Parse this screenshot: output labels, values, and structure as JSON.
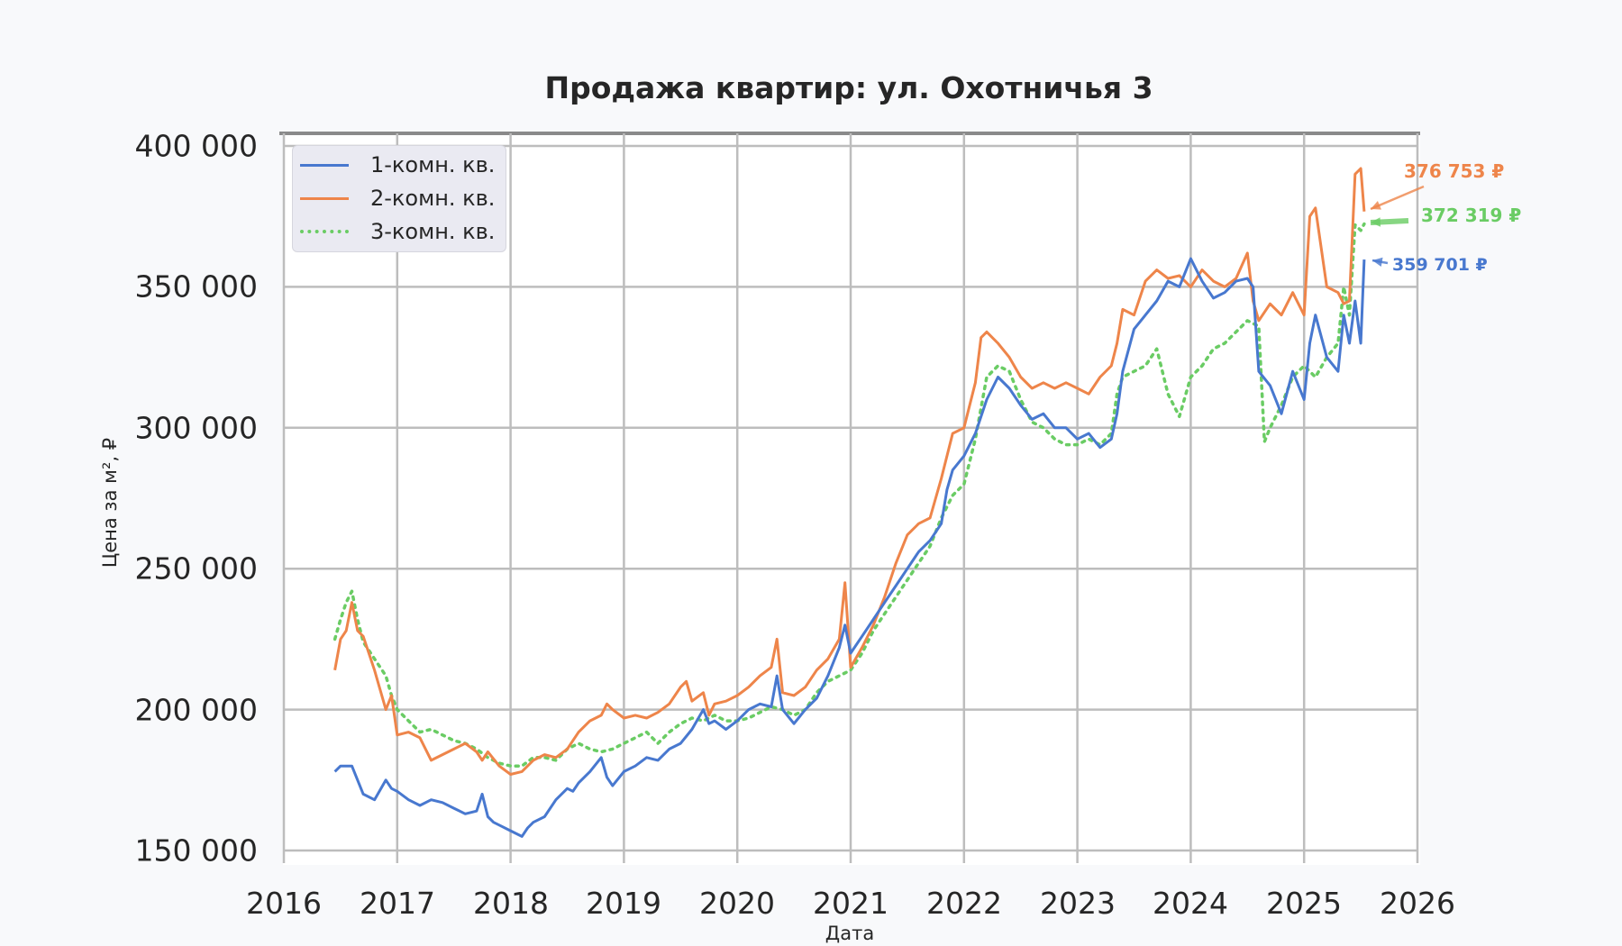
{
  "chart_data": {
    "type": "line",
    "title": "Продажа квартир: ул. Охотничья 3",
    "xlabel": "Дата",
    "ylabel": "Цена за м², ₽",
    "xlim": [
      2016,
      2026
    ],
    "ylim": [
      150000,
      400000
    ],
    "x_ticks": [
      "2016",
      "2017",
      "2018",
      "2019",
      "2020",
      "2021",
      "2022",
      "2023",
      "2024",
      "2025",
      "2026"
    ],
    "y_ticks": [
      "150 000",
      "200 000",
      "250 000",
      "300 000",
      "350 000",
      "400 000"
    ],
    "grid": true,
    "legend_position": "upper left",
    "series": [
      {
        "name": "1-комн. кв.",
        "color": "#4878cf",
        "style": "solid",
        "x": [
          2016.45,
          2016.5,
          2016.6,
          2016.7,
          2016.8,
          2016.9,
          2016.95,
          2017.0,
          2017.1,
          2017.2,
          2017.3,
          2017.4,
          2017.5,
          2017.6,
          2017.7,
          2017.75,
          2017.8,
          2017.85,
          2017.9,
          2018.0,
          2018.1,
          2018.15,
          2018.2,
          2018.3,
          2018.4,
          2018.5,
          2018.55,
          2018.6,
          2018.7,
          2018.8,
          2018.85,
          2018.9,
          2019.0,
          2019.1,
          2019.2,
          2019.3,
          2019.4,
          2019.5,
          2019.6,
          2019.7,
          2019.75,
          2019.8,
          2019.9,
          2020.0,
          2020.1,
          2020.2,
          2020.3,
          2020.35,
          2020.4,
          2020.5,
          2020.6,
          2020.7,
          2020.8,
          2020.9,
          2020.95,
          2021.0,
          2021.1,
          2021.2,
          2021.3,
          2021.4,
          2021.5,
          2021.6,
          2021.7,
          2021.8,
          2021.85,
          2021.9,
          2022.0,
          2022.1,
          2022.2,
          2022.3,
          2022.4,
          2022.5,
          2022.6,
          2022.7,
          2022.8,
          2022.9,
          2023.0,
          2023.1,
          2023.2,
          2023.3,
          2023.35,
          2023.4,
          2023.5,
          2023.6,
          2023.7,
          2023.8,
          2023.9,
          2024.0,
          2024.1,
          2024.2,
          2024.3,
          2024.4,
          2024.5,
          2024.55,
          2024.6,
          2024.7,
          2024.8,
          2024.9,
          2025.0,
          2025.05,
          2025.1,
          2025.2,
          2025.3,
          2025.35,
          2025.4,
          2025.45,
          2025.5,
          2025.53
        ],
        "values": [
          178000,
          180000,
          180000,
          170000,
          168000,
          175000,
          172000,
          171000,
          168000,
          166000,
          168000,
          167000,
          165000,
          163000,
          164000,
          170000,
          162000,
          160000,
          159000,
          157000,
          155000,
          158000,
          160000,
          162000,
          168000,
          172000,
          171000,
          174000,
          178000,
          183000,
          176000,
          173000,
          178000,
          180000,
          183000,
          182000,
          186000,
          188000,
          193000,
          200000,
          195000,
          196000,
          193000,
          196000,
          200000,
          202000,
          201000,
          212000,
          200000,
          195000,
          200000,
          204000,
          212000,
          222000,
          230000,
          220000,
          226000,
          232000,
          238000,
          244000,
          250000,
          256000,
          260000,
          266000,
          278000,
          285000,
          290000,
          298000,
          310000,
          318000,
          314000,
          308000,
          303000,
          305000,
          300000,
          300000,
          296000,
          298000,
          293000,
          296000,
          305000,
          320000,
          335000,
          340000,
          345000,
          352000,
          350000,
          360000,
          352000,
          346000,
          348000,
          352000,
          353000,
          350000,
          320000,
          315000,
          305000,
          320000,
          310000,
          330000,
          340000,
          325000,
          320000,
          340000,
          330000,
          345000,
          330000,
          359701
        ]
      },
      {
        "name": "2-комн. кв.",
        "color": "#ee854a",
        "style": "solid",
        "x": [
          2016.45,
          2016.5,
          2016.55,
          2016.6,
          2016.65,
          2016.7,
          2016.8,
          2016.9,
          2016.95,
          2017.0,
          2017.1,
          2017.2,
          2017.3,
          2017.4,
          2017.5,
          2017.6,
          2017.7,
          2017.75,
          2017.8,
          2017.9,
          2018.0,
          2018.1,
          2018.2,
          2018.3,
          2018.4,
          2018.5,
          2018.6,
          2018.7,
          2018.8,
          2018.85,
          2018.9,
          2019.0,
          2019.1,
          2019.2,
          2019.3,
          2019.4,
          2019.5,
          2019.55,
          2019.6,
          2019.7,
          2019.75,
          2019.8,
          2019.9,
          2020.0,
          2020.1,
          2020.2,
          2020.3,
          2020.35,
          2020.4,
          2020.5,
          2020.6,
          2020.7,
          2020.8,
          2020.9,
          2020.95,
          2021.0,
          2021.1,
          2021.2,
          2021.3,
          2021.4,
          2021.5,
          2021.6,
          2021.7,
          2021.8,
          2021.9,
          2022.0,
          2022.1,
          2022.15,
          2022.2,
          2022.3,
          2022.4,
          2022.5,
          2022.6,
          2022.7,
          2022.8,
          2022.9,
          2023.0,
          2023.1,
          2023.2,
          2023.3,
          2023.35,
          2023.4,
          2023.5,
          2023.6,
          2023.7,
          2023.8,
          2023.9,
          2024.0,
          2024.1,
          2024.2,
          2024.3,
          2024.4,
          2024.5,
          2024.55,
          2024.6,
          2024.7,
          2024.8,
          2024.9,
          2025.0,
          2025.05,
          2025.1,
          2025.2,
          2025.3,
          2025.35,
          2025.4,
          2025.45,
          2025.5,
          2025.53
        ],
        "values": [
          214000,
          225000,
          228000,
          238000,
          228000,
          226000,
          214000,
          200000,
          205000,
          191000,
          192000,
          190000,
          182000,
          184000,
          186000,
          188000,
          185000,
          182000,
          185000,
          180000,
          177000,
          178000,
          182000,
          184000,
          183000,
          186000,
          192000,
          196000,
          198000,
          202000,
          200000,
          197000,
          198000,
          197000,
          199000,
          202000,
          208000,
          210000,
          203000,
          206000,
          198000,
          202000,
          203000,
          205000,
          208000,
          212000,
          215000,
          225000,
          206000,
          205000,
          208000,
          214000,
          218000,
          225000,
          245000,
          215000,
          222000,
          230000,
          240000,
          252000,
          262000,
          266000,
          268000,
          282000,
          298000,
          300000,
          316000,
          332000,
          334000,
          330000,
          325000,
          318000,
          314000,
          316000,
          314000,
          316000,
          314000,
          312000,
          318000,
          322000,
          330000,
          342000,
          340000,
          352000,
          356000,
          353000,
          354000,
          350000,
          356000,
          352000,
          350000,
          353000,
          362000,
          345000,
          338000,
          344000,
          340000,
          348000,
          340000,
          375000,
          378000,
          350000,
          348000,
          344000,
          345000,
          390000,
          392000,
          376753
        ]
      },
      {
        "name": "3-комн. кв.",
        "color": "#6acc64",
        "style": "dotted",
        "x": [
          2016.45,
          2016.5,
          2016.55,
          2016.6,
          2016.65,
          2016.7,
          2016.8,
          2016.9,
          2016.95,
          2017.0,
          2017.1,
          2017.2,
          2017.3,
          2017.4,
          2017.5,
          2017.6,
          2017.7,
          2017.8,
          2017.9,
          2018.0,
          2018.1,
          2018.2,
          2018.3,
          2018.4,
          2018.5,
          2018.6,
          2018.7,
          2018.8,
          2018.9,
          2019.0,
          2019.1,
          2019.2,
          2019.3,
          2019.4,
          2019.5,
          2019.6,
          2019.7,
          2019.8,
          2019.9,
          2020.0,
          2020.1,
          2020.2,
          2020.3,
          2020.4,
          2020.5,
          2020.6,
          2020.7,
          2020.8,
          2020.9,
          2021.0,
          2021.1,
          2021.2,
          2021.3,
          2021.4,
          2021.5,
          2021.6,
          2021.7,
          2021.8,
          2021.9,
          2022.0,
          2022.1,
          2022.2,
          2022.3,
          2022.4,
          2022.5,
          2022.6,
          2022.7,
          2022.8,
          2022.9,
          2023.0,
          2023.1,
          2023.2,
          2023.3,
          2023.35,
          2023.4,
          2023.5,
          2023.6,
          2023.7,
          2023.8,
          2023.9,
          2024.0,
          2024.1,
          2024.2,
          2024.3,
          2024.4,
          2024.5,
          2024.6,
          2024.65,
          2024.7,
          2024.8,
          2024.9,
          2025.0,
          2025.1,
          2025.2,
          2025.3,
          2025.35,
          2025.4,
          2025.45,
          2025.5,
          2025.53
        ],
        "values": [
          225000,
          232000,
          238000,
          242000,
          232000,
          224000,
          218000,
          212000,
          205000,
          200000,
          196000,
          192000,
          193000,
          191000,
          189000,
          188000,
          186000,
          183000,
          181000,
          180000,
          180000,
          183000,
          183000,
          182000,
          186000,
          188000,
          186000,
          185000,
          186000,
          188000,
          190000,
          192000,
          188000,
          192000,
          195000,
          197000,
          196000,
          198000,
          196000,
          196000,
          197000,
          199000,
          201000,
          200000,
          198000,
          200000,
          206000,
          210000,
          212000,
          214000,
          220000,
          228000,
          234000,
          240000,
          246000,
          252000,
          258000,
          268000,
          276000,
          280000,
          296000,
          318000,
          322000,
          320000,
          310000,
          302000,
          300000,
          296000,
          294000,
          294000,
          296000,
          294000,
          298000,
          312000,
          318000,
          320000,
          322000,
          328000,
          312000,
          304000,
          318000,
          322000,
          328000,
          330000,
          334000,
          338000,
          336000,
          295000,
          300000,
          308000,
          318000,
          322000,
          318000,
          325000,
          330000,
          350000,
          340000,
          372000,
          370000,
          372319
        ]
      }
    ],
    "annotations": [
      {
        "text": "376 753 ₽",
        "series": "2-комн. кв.",
        "color": "#ee854a"
      },
      {
        "text": "372 319 ₽",
        "series": "3-комн. кв.",
        "color": "#6acc64"
      },
      {
        "text": "359 701 ₽",
        "series": "1-комн. кв.",
        "color": "#4878cf"
      }
    ]
  }
}
